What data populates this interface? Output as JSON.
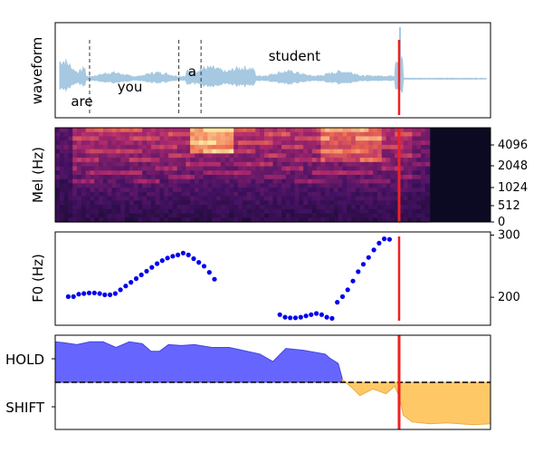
{
  "panels": {
    "waveform": {
      "ylabel": "waveform",
      "words": [
        {
          "text": "are",
          "t": 0.036
        },
        {
          "text": "you",
          "t": 0.143
        },
        {
          "text": "a",
          "t": 0.305
        },
        {
          "text": "student",
          "t": 0.49
        }
      ],
      "boundaries": [
        0.079,
        0.284,
        0.335
      ]
    },
    "mel": {
      "ylabel": "Mel (Hz)",
      "ticks": [
        "0",
        "512",
        "1024",
        "2048",
        "4096"
      ],
      "signal_end_fraction": 0.86
    },
    "f0": {
      "ylabel": "F0 (Hz)",
      "ticks": [
        "200",
        "300"
      ]
    },
    "vad": {
      "yticklabels": [
        "HOLD",
        "SHIFT"
      ]
    }
  },
  "cursor_fraction": 0.79,
  "colors": {
    "waveform": "#a6c8e0",
    "cursor": "#ee2222",
    "f0": "#0000ee",
    "hold": "#6666ff",
    "shift": "#ffc866"
  },
  "chart_data": [
    {
      "type": "area",
      "panel": "waveform",
      "ylabel": "waveform",
      "annotations": [
        "are",
        "you",
        "a",
        "student"
      ],
      "word_boundaries_fraction": [
        0.079,
        0.284,
        0.335
      ],
      "cursor_fraction": 0.79
    },
    {
      "type": "heatmap",
      "panel": "mel",
      "ylabel": "Mel (Hz)",
      "yticks": [
        0,
        512,
        1024,
        2048,
        4096
      ],
      "y_axis_side": "right"
    },
    {
      "type": "scatter",
      "panel": "f0",
      "ylabel": "F0 (Hz)",
      "yticks": [
        200,
        300
      ],
      "ylim": [
        155,
        305
      ],
      "y_axis_side": "right",
      "x": [
        0.03,
        0.042,
        0.054,
        0.066,
        0.078,
        0.09,
        0.102,
        0.114,
        0.126,
        0.138,
        0.15,
        0.162,
        0.174,
        0.186,
        0.198,
        0.21,
        0.222,
        0.234,
        0.246,
        0.258,
        0.27,
        0.282,
        0.294,
        0.306,
        0.318,
        0.33,
        0.342,
        0.354,
        0.366,
        0.516,
        0.528,
        0.54,
        0.552,
        0.564,
        0.576,
        0.588,
        0.6,
        0.612,
        0.624,
        0.636,
        0.648,
        0.66,
        0.672,
        0.684,
        0.696,
        0.708,
        0.72,
        0.732,
        0.744,
        0.756,
        0.768
      ],
      "y": [
        201,
        201,
        205,
        206,
        207,
        207,
        206,
        204,
        204,
        206,
        212,
        218,
        224,
        230,
        236,
        242,
        248,
        254,
        259,
        263,
        266,
        268,
        271,
        268,
        262,
        256,
        250,
        240,
        229,
        172,
        168,
        167,
        167,
        168,
        170,
        172,
        174,
        172,
        168,
        166,
        192,
        201,
        212,
        226,
        241,
        253,
        264,
        276,
        287,
        294,
        293
      ],
      "cursor_fraction": 0.79
    },
    {
      "type": "area",
      "panel": "vad",
      "yticklabels": [
        "HOLD",
        "SHIFT"
      ],
      "series": [
        {
          "name": "HOLD",
          "values": [
            [
              0.0,
              0.93
            ],
            [
              0.02,
              0.92
            ],
            [
              0.05,
              0.9
            ],
            [
              0.08,
              0.93
            ],
            [
              0.11,
              0.93
            ],
            [
              0.14,
              0.87
            ],
            [
              0.17,
              0.93
            ],
            [
              0.2,
              0.91
            ],
            [
              0.22,
              0.83
            ],
            [
              0.24,
              0.83
            ],
            [
              0.26,
              0.9
            ],
            [
              0.29,
              0.89
            ],
            [
              0.32,
              0.9
            ],
            [
              0.36,
              0.87
            ],
            [
              0.4,
              0.87
            ],
            [
              0.43,
              0.84
            ],
            [
              0.47,
              0.8
            ],
            [
              0.5,
              0.72
            ],
            [
              0.53,
              0.86
            ],
            [
              0.57,
              0.84
            ],
            [
              0.62,
              0.8
            ],
            [
              0.63,
              0.76
            ],
            [
              0.65,
              0.7
            ],
            [
              0.66,
              0.53
            ]
          ]
        },
        {
          "name": "SHIFT",
          "values": [
            [
              0.66,
              0.53
            ],
            [
              0.68,
              0.45
            ],
            [
              0.7,
              0.36
            ],
            [
              0.73,
              0.43
            ],
            [
              0.76,
              0.38
            ],
            [
              0.78,
              0.46
            ],
            [
              0.79,
              0.35
            ],
            [
              0.8,
              0.15
            ],
            [
              0.82,
              0.08
            ],
            [
              0.86,
              0.06
            ],
            [
              0.9,
              0.07
            ],
            [
              0.96,
              0.05
            ],
            [
              1.0,
              0.06
            ]
          ]
        }
      ],
      "threshold": 0.5,
      "cursor_fraction": 0.79
    }
  ]
}
